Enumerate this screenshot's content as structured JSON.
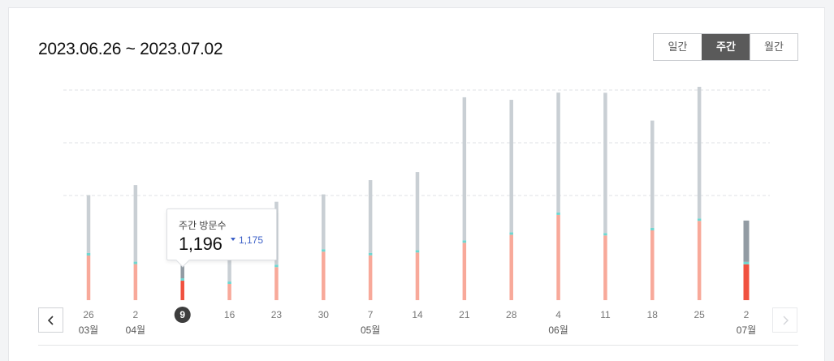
{
  "header": {
    "date_range": "2023.06.26 ~ 2023.07.02"
  },
  "period_tabs": [
    {
      "label": "일간",
      "active": false
    },
    {
      "label": "주간",
      "active": true
    },
    {
      "label": "월간",
      "active": false
    }
  ],
  "tooltip": {
    "label": "주간 방문수",
    "value": "1,196",
    "compare_value": "1,175"
  },
  "colors": {
    "total": "#c9cfd4",
    "total_selected": "#929ba3",
    "divider": "#6fd6d0",
    "visits": "#f8a99a",
    "visits_selected": "#f0513f",
    "grid": "#dfe1e4",
    "label": "#777777"
  },
  "icons": {
    "prev": "chevron-left-icon",
    "next": "chevron-right-icon"
  },
  "chart_data": {
    "type": "bar",
    "stacked": true,
    "grid": true,
    "categories": [
      "26",
      "2",
      "9",
      "16",
      "23",
      "30",
      "7",
      "14",
      "21",
      "28",
      "4",
      "11",
      "18",
      "25",
      "2"
    ],
    "month_labels": [
      "03월",
      "04월",
      "",
      "",
      "",
      "",
      "05월",
      "",
      "",
      "",
      "06월",
      "",
      "",
      "",
      "07월"
    ],
    "selected_index": 2,
    "current_index": 14,
    "series": [
      {
        "values": [
          1270,
          1025,
          553,
          461,
          940,
          1380,
          1275,
          1355,
          1632,
          1860,
          2425,
          1840,
          1985,
          2255,
          1020
        ]
      },
      {
        "values": [
          1650,
          2180,
          1196,
          1085,
          1790,
          1560,
          2070,
          2220,
          4070,
          3770,
          3410,
          3990,
          3055,
          3745,
          1175
        ]
      }
    ],
    "ylim": [
      0,
      6000
    ]
  }
}
